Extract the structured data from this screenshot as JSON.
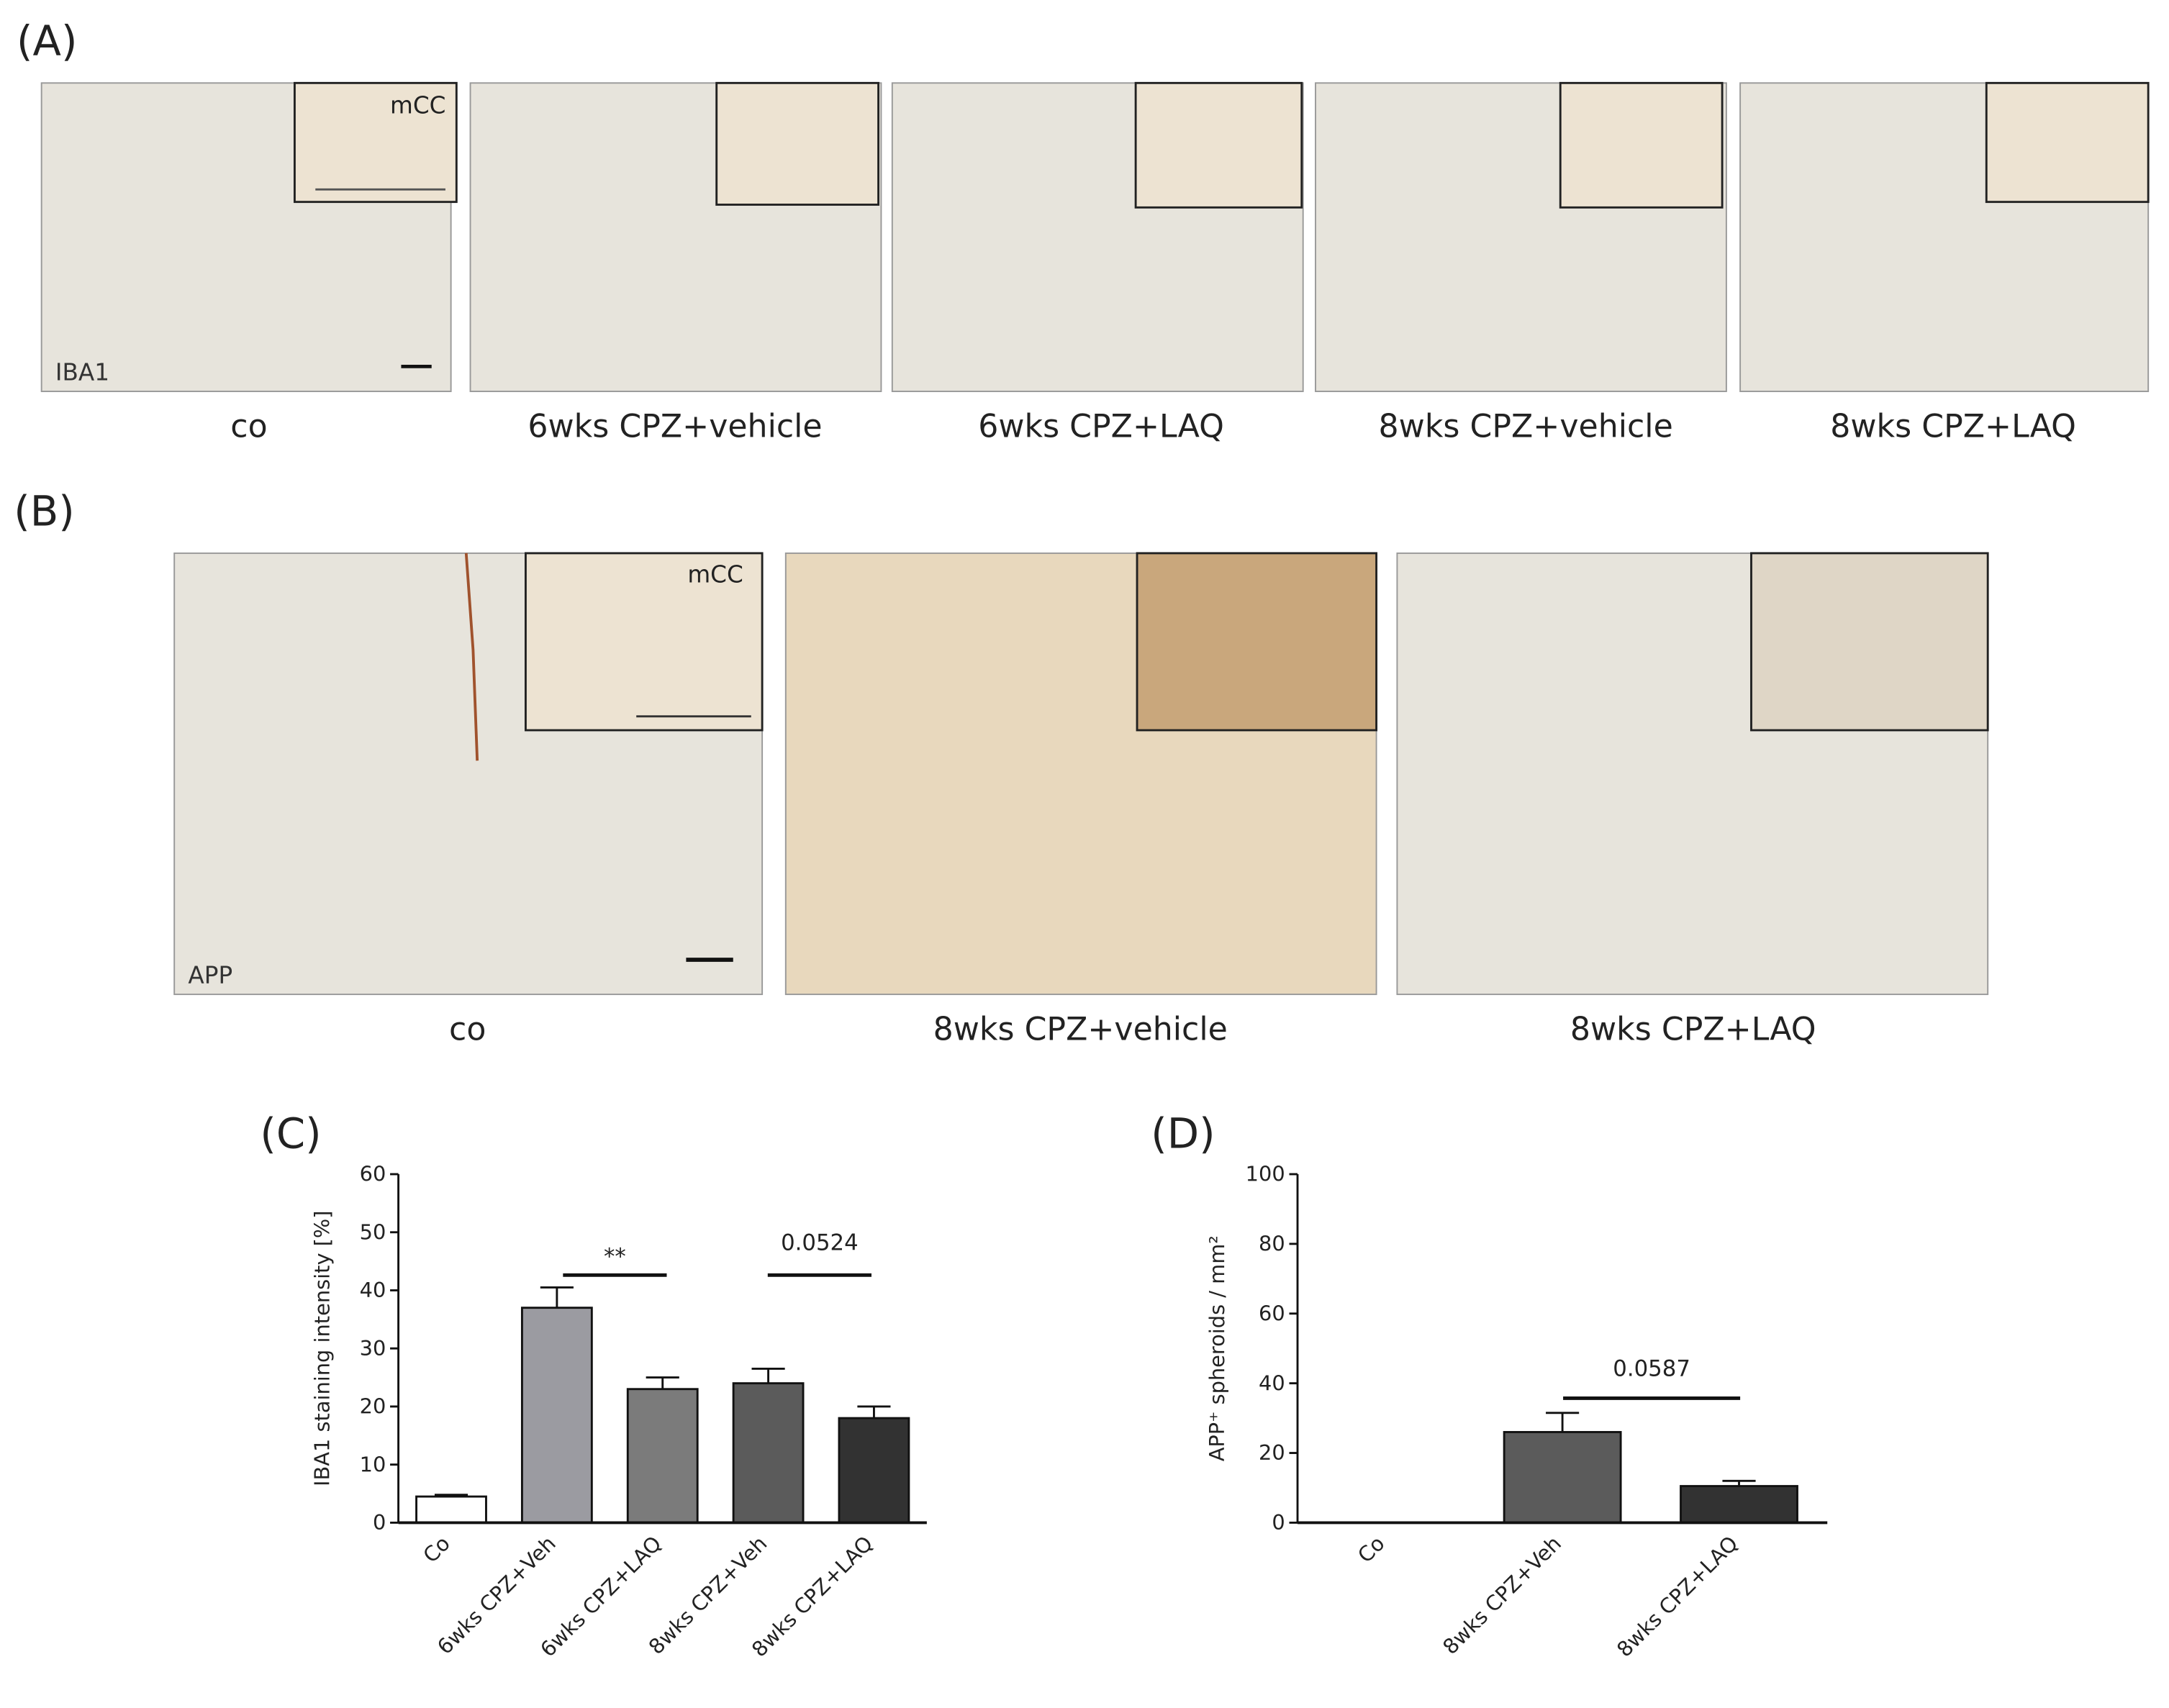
{
  "figure": {
    "panel_a": {
      "label": "(A)",
      "stain": "IBA1",
      "region": "mCC",
      "captions": [
        "co",
        "6wks CPZ+vehicle",
        "6wks CPZ+LAQ",
        "8wks CPZ+vehicle",
        "8wks CPZ+LAQ"
      ]
    },
    "panel_b": {
      "label": "(B)",
      "stain": "APP",
      "region": "mCC",
      "captions": [
        "co",
        "8wks CPZ+vehicle",
        "8wks CPZ+LAQ"
      ]
    }
  },
  "chart_data": [
    {
      "type": "bar",
      "title": "(C)",
      "y_label": "IBA1 staining intensity [%]",
      "categories": [
        "Co",
        "6wks CPZ+Veh",
        "6wks CPZ+LAQ",
        "8wks CPZ+Veh",
        "8wks CPZ+LAQ"
      ],
      "values": [
        4.5,
        37,
        23,
        24,
        18
      ],
      "errors": [
        0.3,
        3.5,
        2,
        2.5,
        2
      ],
      "colors": [
        "#ffffff",
        "#9b9ba1",
        "#7b7b7b",
        "#5b5b5b",
        "#323232"
      ],
      "ylim": [
        0,
        60
      ],
      "yticks": [
        0,
        10,
        20,
        30,
        40,
        50,
        60
      ],
      "annotations": [
        "**",
        "0.0524"
      ]
    },
    {
      "type": "bar",
      "title": "(D)",
      "y_label": "APP⁺ spheroids / mm²",
      "categories": [
        "Co",
        "8wks CPZ+Veh",
        "8wks CPZ+LAQ"
      ],
      "values": [
        0,
        26,
        10.5
      ],
      "errors": [
        0,
        5.5,
        1.5
      ],
      "colors": [
        "#ffffff",
        "#5b5b5b",
        "#323232"
      ],
      "ylim": [
        0,
        100
      ],
      "yticks": [
        0,
        20,
        40,
        60,
        80,
        100
      ],
      "annotations": [
        "0.0587"
      ]
    }
  ]
}
